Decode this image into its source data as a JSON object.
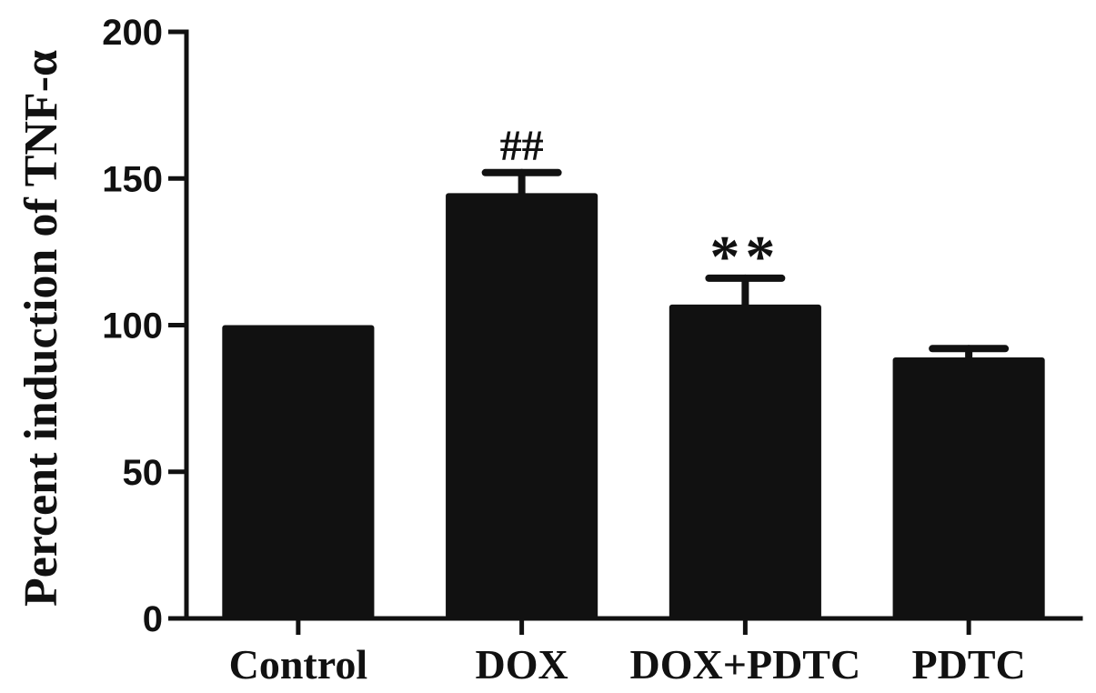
{
  "chart_data": {
    "type": "bar",
    "ylabel": "Percent induction of TNF-α",
    "xlabel": "",
    "categories": [
      "Control",
      "DOX",
      "DOX+PDTC",
      "PDTC"
    ],
    "values": [
      100,
      145,
      107,
      89
    ],
    "error": [
      0,
      7,
      9,
      3
    ],
    "annotations": [
      "",
      "##",
      "**",
      ""
    ],
    "ylim": [
      0,
      200
    ],
    "yticks": [
      0,
      50,
      100,
      150,
      200
    ],
    "grid": false,
    "bar_color": "#111111"
  }
}
